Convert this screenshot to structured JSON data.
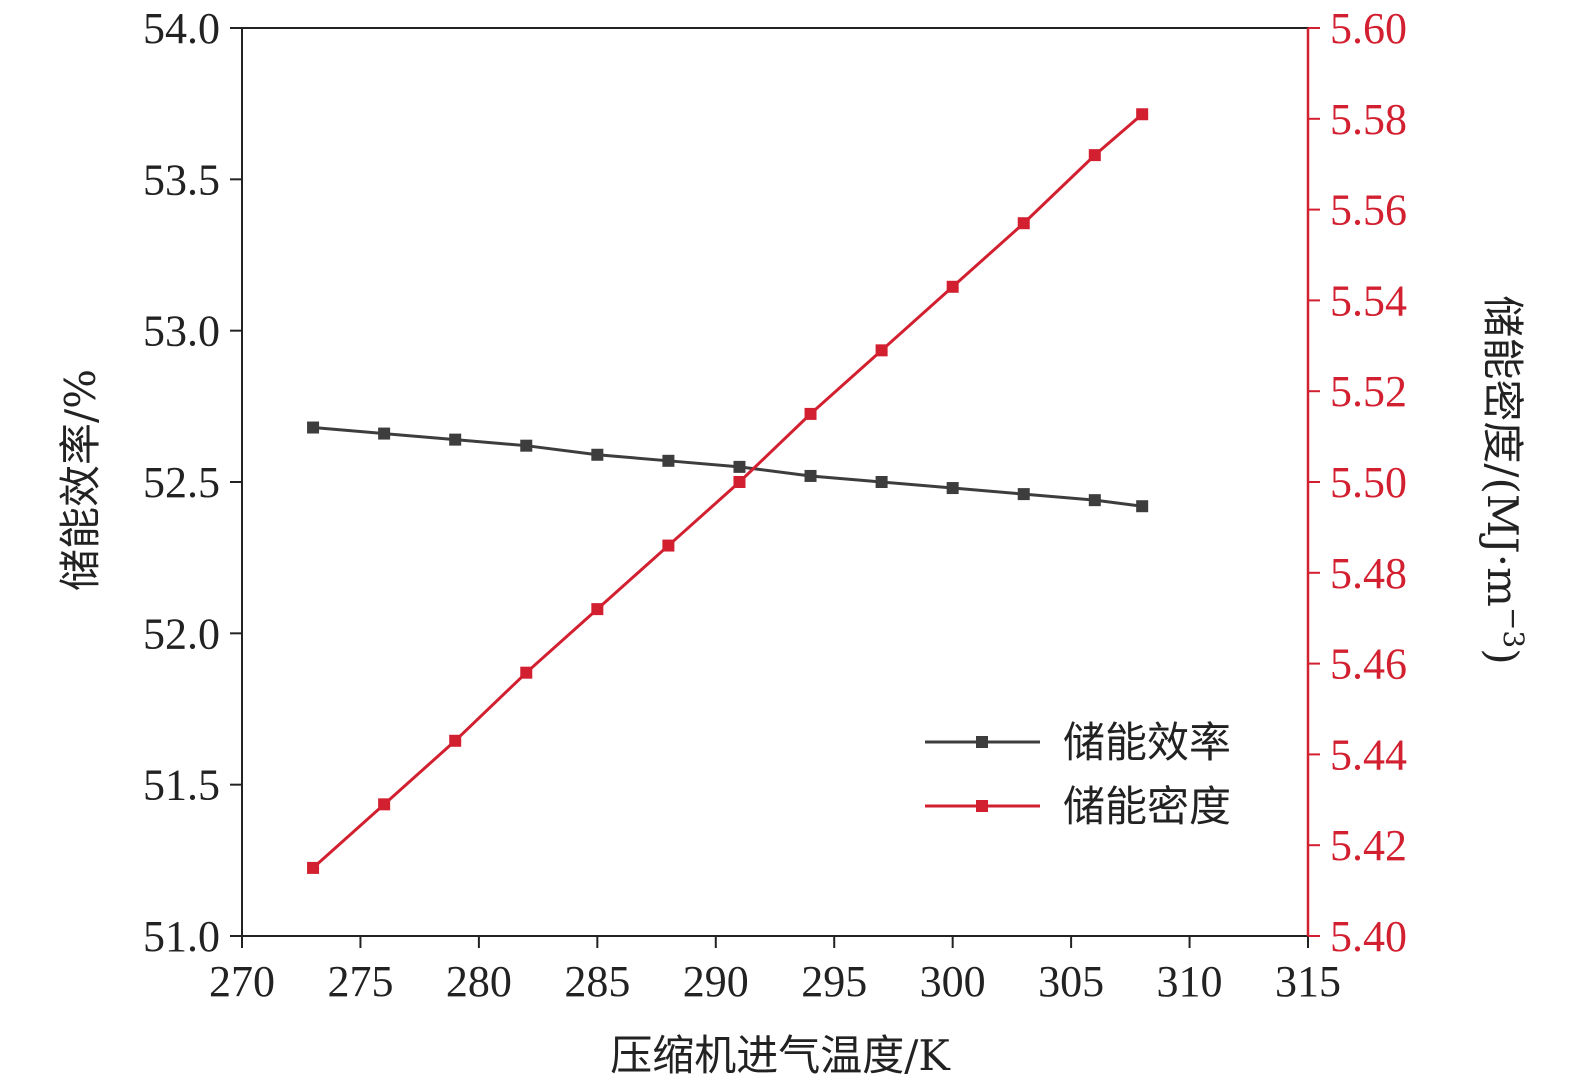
{
  "chart_data": {
    "type": "line",
    "x": [
      273,
      276,
      279,
      282,
      285,
      288,
      291,
      294,
      297,
      300,
      303,
      306,
      308
    ],
    "xlabel": "压缩机进气温度/K",
    "xlim": [
      270,
      315
    ],
    "xticks": [
      "270",
      "275",
      "280",
      "285",
      "290",
      "295",
      "300",
      "305",
      "310",
      "315"
    ],
    "ylabel_left": "储能效率/%",
    "ylim_left": [
      51.0,
      54.0
    ],
    "yticks_left": [
      "51.0",
      "51.5",
      "52.0",
      "52.5",
      "53.0",
      "53.5",
      "54.0"
    ],
    "ylabel_right_main": "储能密度/(MJ·m",
    "ylabel_right_sup": "−3",
    "ylabel_right_close": ")",
    "ylim_right": [
      5.4,
      5.6
    ],
    "yticks_right": [
      "5.40",
      "5.42",
      "5.44",
      "5.46",
      "5.48",
      "5.50",
      "5.52",
      "5.54",
      "5.56",
      "5.58",
      "5.60"
    ],
    "series": [
      {
        "name": "储能效率",
        "axis": "left",
        "color": "#3d3d3d",
        "marker": "square",
        "values": [
          52.68,
          52.66,
          52.64,
          52.62,
          52.59,
          52.57,
          52.55,
          52.52,
          52.5,
          52.48,
          52.46,
          52.44,
          52.42
        ]
      },
      {
        "name": "储能密度",
        "axis": "right",
        "color": "#d22030",
        "marker": "square",
        "values": [
          5.415,
          5.429,
          5.443,
          5.458,
          5.472,
          5.486,
          5.5,
          5.515,
          5.529,
          5.543,
          5.557,
          5.572,
          5.581
        ]
      }
    ],
    "legend_position": "lower-right",
    "grid": false,
    "colors": {
      "left_axis": "#222222",
      "right_axis": "#d22030"
    }
  }
}
